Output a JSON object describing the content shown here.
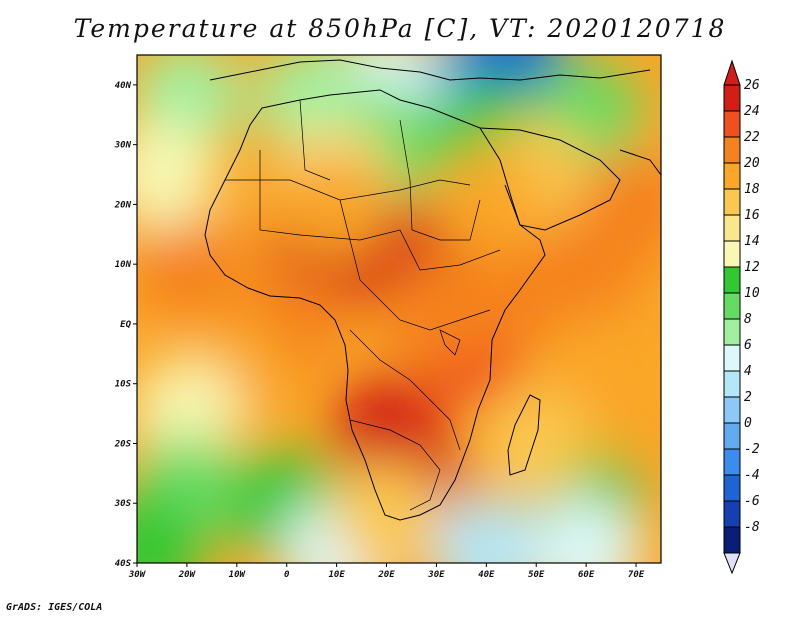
{
  "title": "Temperature at 850hPa [C], VT: 2020120718",
  "credit": "GrADS: IGES/COLA",
  "map": {
    "lon_range": [
      -30,
      75
    ],
    "lat_range": [
      -40,
      45
    ],
    "lat_ticks": [
      {
        "lat": 40,
        "label": "40N"
      },
      {
        "lat": 30,
        "label": "30N"
      },
      {
        "lat": 20,
        "label": "20N"
      },
      {
        "lat": 10,
        "label": "10N"
      },
      {
        "lat": 0,
        "label": "EQ"
      },
      {
        "lat": -10,
        "label": "10S"
      },
      {
        "lat": -20,
        "label": "20S"
      },
      {
        "lat": -30,
        "label": "30S"
      },
      {
        "lat": -40,
        "label": "40S"
      }
    ],
    "lon_ticks": [
      {
        "lon": -30,
        "label": "30W"
      },
      {
        "lon": -20,
        "label": "20W"
      },
      {
        "lon": -10,
        "label": "10W"
      },
      {
        "lon": 0,
        "label": "0"
      },
      {
        "lon": 10,
        "label": "10E"
      },
      {
        "lon": 20,
        "label": "20E"
      },
      {
        "lon": 30,
        "label": "30E"
      },
      {
        "lon": 40,
        "label": "40E"
      },
      {
        "lon": 50,
        "label": "50E"
      },
      {
        "lon": 60,
        "label": "60E"
      },
      {
        "lon": 70,
        "label": "70E"
      }
    ]
  },
  "colorbar": {
    "levels": [
      26,
      24,
      22,
      20,
      18,
      16,
      14,
      12,
      10,
      8,
      6,
      4,
      2,
      0,
      -2,
      -4,
      -6,
      -8
    ],
    "labels": [
      "26",
      "24",
      "22",
      "20",
      "18",
      "16",
      "14",
      "12",
      "10",
      "8",
      "6",
      "4",
      "2",
      "0",
      "-2",
      "-4",
      "-6",
      "-8"
    ],
    "colors": [
      "#d21e14",
      "#f0501e",
      "#f5821e",
      "#faa628",
      "#fac850",
      "#fae68c",
      "#f8f8b4",
      "#32c832",
      "#64dc64",
      "#a0f0a0",
      "#dcf8f8",
      "#b4e6f8",
      "#8cc8f8",
      "#64aaf0",
      "#3c8cf0",
      "#1e64d2",
      "#1440b4",
      "#0a1e78"
    ],
    "top_color": "#d21e14",
    "bottom_color": "#e0e0f8"
  },
  "field_zones": [
    {
      "lon": 20,
      "lat": 12,
      "value": 24
    },
    {
      "lon": 30,
      "lat": 10,
      "value": 24
    },
    {
      "lon": 8,
      "lat": 13,
      "value": 24
    },
    {
      "lon": 20,
      "lat": -18,
      "value": 25
    },
    {
      "lon": 25,
      "lat": -26,
      "value": 25
    },
    {
      "lon": 36,
      "lat": -5,
      "value": 23
    },
    {
      "lon": 30,
      "lat": 2,
      "value": 21
    },
    {
      "lon": 45,
      "lat": 5,
      "value": 21
    },
    {
      "lon": 60,
      "lat": 10,
      "value": 20
    },
    {
      "lon": 65,
      "lat": -10,
      "value": 19
    },
    {
      "lon": 0,
      "lat": 0,
      "value": 20
    },
    {
      "lon": -20,
      "lat": 10,
      "value": 20
    },
    {
      "lon": -10,
      "lat": -8,
      "value": 18
    },
    {
      "lon": -20,
      "lat": -15,
      "value": 12
    },
    {
      "lon": -20,
      "lat": -28,
      "value": 9
    },
    {
      "lon": 0,
      "lat": -30,
      "value": 10
    },
    {
      "lon": 60,
      "lat": -30,
      "value": 10
    },
    {
      "lon": 50,
      "lat": -20,
      "value": 16
    },
    {
      "lon": 40,
      "lat": -38,
      "value": 2
    },
    {
      "lon": 60,
      "lat": -38,
      "value": 4
    },
    {
      "lon": 10,
      "lat": -38,
      "value": 5
    },
    {
      "lon": 20,
      "lat": 40,
      "value": 4
    },
    {
      "lon": 40,
      "lat": 42,
      "value": -2
    },
    {
      "lon": 45,
      "lat": 44,
      "value": -6
    },
    {
      "lon": 5,
      "lat": 38,
      "value": 6
    },
    {
      "lon": -20,
      "lat": 38,
      "value": 7
    },
    {
      "lon": -25,
      "lat": 25,
      "value": 12
    },
    {
      "lon": 20,
      "lat": 30,
      "value": 8
    },
    {
      "lon": 40,
      "lat": 32,
      "value": 10
    },
    {
      "lon": 60,
      "lat": 35,
      "value": 8
    },
    {
      "lon": 10,
      "lat": 25,
      "value": 15
    },
    {
      "lon": 50,
      "lat": 25,
      "value": 17
    },
    {
      "lon": 40,
      "lat": 20,
      "value": 18
    },
    {
      "lon": 10,
      "lat": 20,
      "value": 18
    },
    {
      "lon": 20,
      "lat": -32,
      "value": 16
    },
    {
      "lon": 70,
      "lat": 20,
      "value": 20
    },
    {
      "lon": -28,
      "lat": -38,
      "value": 10
    }
  ]
}
